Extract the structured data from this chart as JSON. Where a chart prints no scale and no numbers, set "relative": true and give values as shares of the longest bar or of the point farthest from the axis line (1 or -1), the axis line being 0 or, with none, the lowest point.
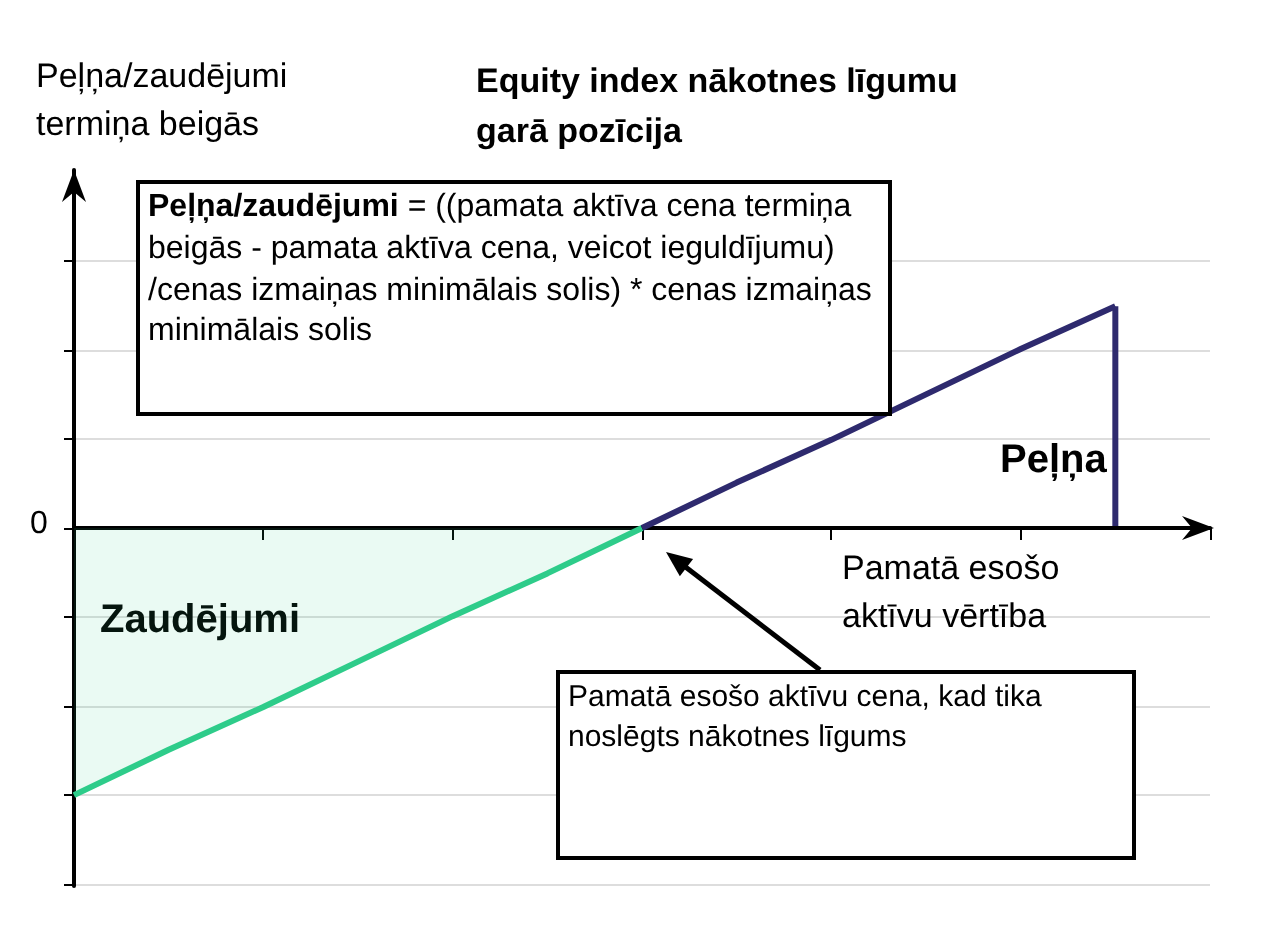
{
  "chart_data": {
    "type": "line",
    "title": "Equity index nākotnes līgumu garā pozīcija",
    "ylabel": "Peļņa/zaudējumi termiņa beigās",
    "xlabel": "Pamatā esošo aktīvu vērtība",
    "relative": true,
    "categories": [
      null,
      null,
      null,
      null,
      null,
      null,
      null,
      null,
      null,
      null,
      null,
      null,
      null
    ],
    "grid": "y",
    "marker": "none",
    "series": [
      {
        "type": "area",
        "color": "#2ecc8a",
        "values": [
          -1,
          -0.83,
          -0.67,
          -0.5,
          -0.33,
          -0.17,
          0,
          null,
          null,
          null,
          null,
          null,
          null
        ]
      },
      {
        "type": "line",
        "color": "#2e2a6e",
        "values": [
          null,
          null,
          null,
          null,
          null,
          null,
          0,
          0.17,
          0.33,
          0.5,
          0.67,
          0.83,
          null
        ]
      }
    ],
    "annotations": [
      "Peļņa/zaudējumi = ((pamata aktīva cena termiņa beigās - pamata aktīva cena, veicot ieguldījumu) /cenas izmaiņas minimālais solis) * cenas izmaiņas minimālais solis",
      "Peļņa",
      "Zaudējumi",
      "Pamatā esošo aktīvu cena, kad tika noslēgts nākotnes līgums",
      "0"
    ]
  }
}
